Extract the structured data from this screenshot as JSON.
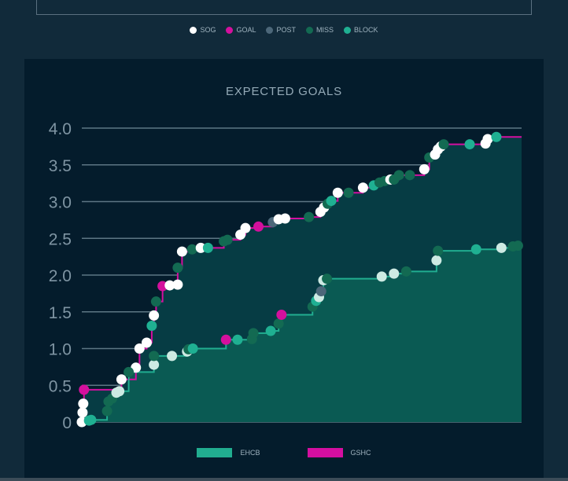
{
  "shot_legend": [
    {
      "label": "SOG",
      "color": "#ffffff"
    },
    {
      "label": "GOAL",
      "color": "#d4109d"
    },
    {
      "label": "POST",
      "color": "#4c6779"
    },
    {
      "label": "MISS",
      "color": "#136a52"
    },
    {
      "label": "BLOCK",
      "color": "#1fb092"
    }
  ],
  "team_legend": [
    {
      "label": "EHCB",
      "color": "#21ad90"
    },
    {
      "label": "GSHC",
      "color": "#d40fa0"
    }
  ],
  "colors": {
    "SOG": "#ffffff",
    "GOAL": "#d4109d",
    "POST": "#4c6779",
    "MISS": "#136a52",
    "BLOCK": "#1fb092",
    "SOG_EHCB": "#cdeae3"
  },
  "chart_data": {
    "type": "area",
    "title": "EXPECTED GOALS",
    "y_ticks": [
      "0",
      "0.5",
      "1.0",
      "1.5",
      "2.0",
      "2.5",
      "3.0",
      "3.5",
      "4.0"
    ],
    "ylim": [
      0,
      4
    ],
    "xlim": [
      0,
      61
    ],
    "series": [
      {
        "name": "GSHC",
        "line_color": "#d40fa0",
        "fill": "#063c44",
        "shots": [
          {
            "t": 0.0,
            "xg": 0.0,
            "type": "SOG"
          },
          {
            "t": 0.1,
            "xg": 0.13,
            "type": "SOG"
          },
          {
            "t": 0.2,
            "xg": 0.25,
            "type": "SOG"
          },
          {
            "t": 0.3,
            "xg": 0.44,
            "type": "GOAL"
          },
          {
            "t": 5.5,
            "xg": 0.58,
            "type": "SOG"
          },
          {
            "t": 7.5,
            "xg": 0.74,
            "type": "SOG"
          },
          {
            "t": 8.0,
            "xg": 1.0,
            "type": "SOG"
          },
          {
            "t": 9.0,
            "xg": 1.08,
            "type": "SOG"
          },
          {
            "t": 9.7,
            "xg": 1.31,
            "type": "BLOCK"
          },
          {
            "t": 10.0,
            "xg": 1.45,
            "type": "SOG"
          },
          {
            "t": 10.3,
            "xg": 1.64,
            "type": "MISS"
          },
          {
            "t": 11.2,
            "xg": 1.85,
            "type": "GOAL"
          },
          {
            "t": 12.2,
            "xg": 1.86,
            "type": "SOG"
          },
          {
            "t": 13.3,
            "xg": 1.87,
            "type": "SOG"
          },
          {
            "t": 13.3,
            "xg": 2.1,
            "type": "MISS"
          },
          {
            "t": 13.9,
            "xg": 2.32,
            "type": "SOG"
          },
          {
            "t": 15.3,
            "xg": 2.35,
            "type": "MISS"
          },
          {
            "t": 16.5,
            "xg": 2.37,
            "type": "SOG"
          },
          {
            "t": 17.5,
            "xg": 2.37,
            "type": "BLOCK"
          },
          {
            "t": 19.7,
            "xg": 2.46,
            "type": "MISS"
          },
          {
            "t": 20.2,
            "xg": 2.48,
            "type": "MISS"
          },
          {
            "t": 22.0,
            "xg": 2.55,
            "type": "SOG"
          },
          {
            "t": 22.7,
            "xg": 2.64,
            "type": "SOG"
          },
          {
            "t": 24.5,
            "xg": 2.66,
            "type": "GOAL"
          },
          {
            "t": 26.5,
            "xg": 2.72,
            "type": "POST"
          },
          {
            "t": 27.3,
            "xg": 2.76,
            "type": "SOG"
          },
          {
            "t": 28.2,
            "xg": 2.77,
            "type": "SOG"
          },
          {
            "t": 31.5,
            "xg": 2.79,
            "type": "MISS"
          },
          {
            "t": 33.1,
            "xg": 2.86,
            "type": "SOG"
          },
          {
            "t": 33.6,
            "xg": 2.92,
            "type": "SOG"
          },
          {
            "t": 34.1,
            "xg": 2.97,
            "type": "MISS"
          },
          {
            "t": 34.6,
            "xg": 3.01,
            "type": "BLOCK"
          },
          {
            "t": 35.5,
            "xg": 3.12,
            "type": "SOG"
          },
          {
            "t": 37.0,
            "xg": 3.12,
            "type": "MISS"
          },
          {
            "t": 39.0,
            "xg": 3.19,
            "type": "SOG"
          },
          {
            "t": 40.5,
            "xg": 3.22,
            "type": "BLOCK"
          },
          {
            "t": 41.3,
            "xg": 3.26,
            "type": "MISS"
          },
          {
            "t": 42.0,
            "xg": 3.28,
            "type": "MISS"
          },
          {
            "t": 42.8,
            "xg": 3.3,
            "type": "SOG"
          },
          {
            "t": 43.3,
            "xg": 3.3,
            "type": "MISS"
          },
          {
            "t": 44.0,
            "xg": 3.36,
            "type": "MISS"
          },
          {
            "t": 45.5,
            "xg": 3.36,
            "type": "MISS"
          },
          {
            "t": 47.5,
            "xg": 3.44,
            "type": "SOG"
          },
          {
            "t": 48.2,
            "xg": 3.6,
            "type": "MISS"
          },
          {
            "t": 49.0,
            "xg": 3.64,
            "type": "SOG"
          },
          {
            "t": 49.4,
            "xg": 3.71,
            "type": "SOG"
          },
          {
            "t": 49.8,
            "xg": 3.75,
            "type": "SOG"
          },
          {
            "t": 50.2,
            "xg": 3.78,
            "type": "MISS"
          },
          {
            "t": 53.8,
            "xg": 3.78,
            "type": "BLOCK"
          },
          {
            "t": 56.0,
            "xg": 3.79,
            "type": "SOG"
          },
          {
            "t": 56.3,
            "xg": 3.85,
            "type": "SOG"
          },
          {
            "t": 57.5,
            "xg": 3.88,
            "type": "BLOCK"
          }
        ]
      },
      {
        "name": "EHCB",
        "line_color": "#21ad90",
        "fill": "#0a5a53",
        "shots": [
          {
            "t": 1.0,
            "xg": 0.02,
            "type": "BLOCK"
          },
          {
            "t": 1.3,
            "xg": 0.03,
            "type": "BLOCK"
          },
          {
            "t": 3.5,
            "xg": 0.15,
            "type": "MISS"
          },
          {
            "t": 3.7,
            "xg": 0.28,
            "type": "MISS"
          },
          {
            "t": 4.2,
            "xg": 0.32,
            "type": "MISS"
          },
          {
            "t": 4.8,
            "xg": 0.4,
            "type": "SOG_EHCB"
          },
          {
            "t": 5.2,
            "xg": 0.42,
            "type": "SOG_EHCB"
          },
          {
            "t": 6.5,
            "xg": 0.68,
            "type": "MISS"
          },
          {
            "t": 10.0,
            "xg": 0.78,
            "type": "SOG_EHCB"
          },
          {
            "t": 10.0,
            "xg": 0.9,
            "type": "MISS"
          },
          {
            "t": 12.5,
            "xg": 0.9,
            "type": "SOG_EHCB"
          },
          {
            "t": 14.6,
            "xg": 0.96,
            "type": "SOG_EHCB"
          },
          {
            "t": 14.8,
            "xg": 0.99,
            "type": "MISS"
          },
          {
            "t": 15.4,
            "xg": 1.0,
            "type": "BLOCK"
          },
          {
            "t": 20.0,
            "xg": 1.12,
            "type": "GOAL"
          },
          {
            "t": 21.6,
            "xg": 1.12,
            "type": "BLOCK"
          },
          {
            "t": 23.6,
            "xg": 1.13,
            "type": "MISS"
          },
          {
            "t": 23.8,
            "xg": 1.21,
            "type": "MISS"
          },
          {
            "t": 26.2,
            "xg": 1.24,
            "type": "BLOCK"
          },
          {
            "t": 27.3,
            "xg": 1.34,
            "type": "MISS"
          },
          {
            "t": 27.7,
            "xg": 1.46,
            "type": "GOAL"
          },
          {
            "t": 32.0,
            "xg": 1.57,
            "type": "MISS"
          },
          {
            "t": 32.5,
            "xg": 1.65,
            "type": "BLOCK"
          },
          {
            "t": 32.9,
            "xg": 1.7,
            "type": "SOG_EHCB"
          },
          {
            "t": 33.2,
            "xg": 1.78,
            "type": "POST"
          },
          {
            "t": 33.5,
            "xg": 1.93,
            "type": "SOG_EHCB"
          },
          {
            "t": 34.0,
            "xg": 1.95,
            "type": "MISS"
          },
          {
            "t": 41.6,
            "xg": 1.98,
            "type": "SOG_EHCB"
          },
          {
            "t": 43.3,
            "xg": 2.02,
            "type": "SOG_EHCB"
          },
          {
            "t": 45.0,
            "xg": 2.05,
            "type": "MISS"
          },
          {
            "t": 49.2,
            "xg": 2.2,
            "type": "SOG_EHCB"
          },
          {
            "t": 49.4,
            "xg": 2.33,
            "type": "MISS"
          },
          {
            "t": 54.7,
            "xg": 2.35,
            "type": "BLOCK"
          },
          {
            "t": 58.2,
            "xg": 2.37,
            "type": "SOG_EHCB"
          },
          {
            "t": 59.8,
            "xg": 2.39,
            "type": "MISS"
          },
          {
            "t": 60.5,
            "xg": 2.4,
            "type": "MISS"
          }
        ]
      }
    ]
  }
}
